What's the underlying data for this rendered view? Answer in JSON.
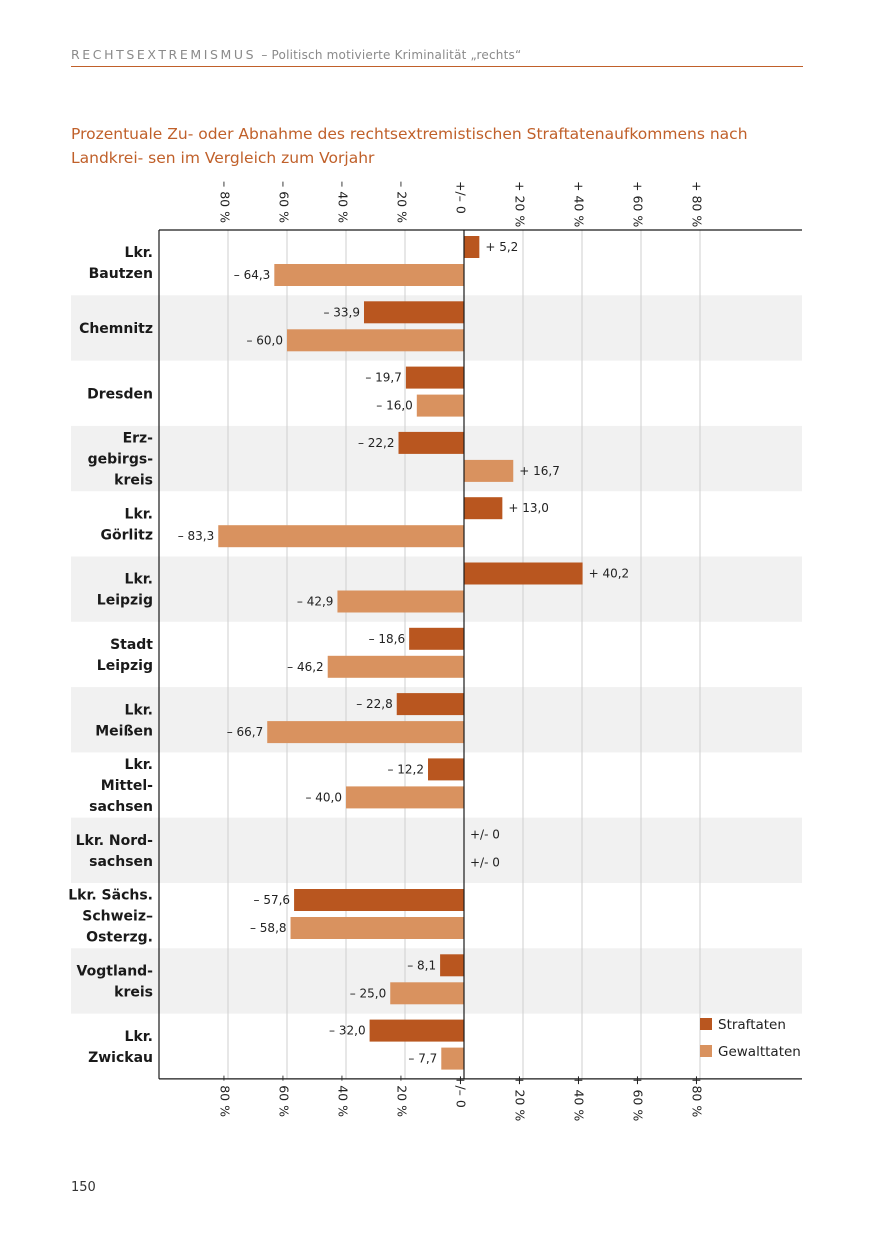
{
  "header": {
    "section": "RECHTSEXTREMISMUS",
    "subtitle": "– Politisch motivierte Kriminalität „rechts“"
  },
  "page_number": "150",
  "chart_data": {
    "type": "bar",
    "orientation": "horizontal",
    "title": "Prozentuale Zu- oder Abnahme des rechtsextremistischen Straftatenaufkommens nach Landkreisen im Vergleich zum Vorjahr",
    "title_display": "Prozentuale Zu- oder Abnahme des rechtsextremistischen Straftatenaufkommens nach Landkrei- sen im Vergleich zum Vorjahr",
    "xlim": [
      -80,
      80
    ],
    "ticks": [
      {
        "value": -80,
        "top_label": "– 80 %",
        "bottom_label": "– 80 %"
      },
      {
        "value": -60,
        "top_label": "– 60 %",
        "bottom_label": "– 60 %"
      },
      {
        "value": -40,
        "top_label": "– 40 %",
        "bottom_label": "– 40 %"
      },
      {
        "value": -20,
        "top_label": "– 20 %",
        "bottom_label": "– 20 %"
      },
      {
        "value": 0,
        "top_label": "+/– 0",
        "bottom_label": "+/– 0"
      },
      {
        "value": 20,
        "top_label": "+ 20 %",
        "bottom_label": "+ 20 %"
      },
      {
        "value": 40,
        "top_label": "+ 40 %",
        "bottom_label": "+ 40 %"
      },
      {
        "value": 60,
        "top_label": "+ 60 %",
        "bottom_label": "+ 60 %"
      },
      {
        "value": 80,
        "top_label": "+ 80 %",
        "bottom_label": "+80 %"
      }
    ],
    "grid": true,
    "legend_position": "bottom-right",
    "series": [
      {
        "name": "Straftaten",
        "color": "#b9561f"
      },
      {
        "name": "Gewalttaten",
        "color": "#d9925f"
      }
    ],
    "rows": [
      {
        "label": [
          "Lkr.",
          "Bautzen"
        ],
        "values": [
          5.2,
          -64.3
        ],
        "labels": [
          "+ 5,2",
          "– 64,3"
        ]
      },
      {
        "label": [
          "Chemnitz"
        ],
        "values": [
          -33.9,
          -60.0
        ],
        "labels": [
          "– 33,9",
          "– 60,0"
        ]
      },
      {
        "label": [
          "Dresden"
        ],
        "values": [
          -19.7,
          -16.0
        ],
        "labels": [
          "– 19,7",
          "– 16,0"
        ]
      },
      {
        "label": [
          "Erz-",
          "gebirgs-",
          "kreis"
        ],
        "values": [
          -22.2,
          16.7
        ],
        "labels": [
          "– 22,2",
          "+ 16,7"
        ]
      },
      {
        "label": [
          "Lkr.",
          "Görlitz"
        ],
        "values": [
          13.0,
          -83.3
        ],
        "labels": [
          "+ 13,0",
          "– 83,3"
        ]
      },
      {
        "label": [
          "Lkr.",
          "Leipzig"
        ],
        "values": [
          40.2,
          -42.9
        ],
        "labels": [
          "+ 40,2",
          "– 42,9"
        ]
      },
      {
        "label": [
          "Stadt",
          "Leipzig"
        ],
        "values": [
          -18.6,
          -46.2
        ],
        "labels": [
          "– 18,6",
          "– 46,2"
        ]
      },
      {
        "label": [
          "Lkr.",
          "Meißen"
        ],
        "values": [
          -22.8,
          -66.7
        ],
        "labels": [
          "– 22,8",
          "– 66,7"
        ]
      },
      {
        "label": [
          "Lkr.",
          "Mittel-",
          "sachsen"
        ],
        "values": [
          -12.2,
          -40.0
        ],
        "labels": [
          "– 12,2",
          "– 40,0"
        ]
      },
      {
        "label": [
          "Lkr. Nord-",
          "sachsen"
        ],
        "values": [
          0,
          0
        ],
        "labels": [
          "+/- 0",
          "+/- 0"
        ]
      },
      {
        "label": [
          "Lkr. Sächs.",
          "Schweiz–",
          "Osterzg."
        ],
        "values": [
          -57.6,
          -58.8
        ],
        "labels": [
          "– 57,6",
          "– 58,8"
        ]
      },
      {
        "label": [
          "Vogtland-",
          "kreis"
        ],
        "values": [
          -8.1,
          -25.0
        ],
        "labels": [
          "– 8,1",
          "– 25,0"
        ]
      },
      {
        "label": [
          "Lkr.",
          "Zwickau"
        ],
        "values": [
          -32.0,
          -7.7
        ],
        "labels": [
          "– 32,0",
          "– 7,7"
        ]
      }
    ],
    "colors": {
      "band": "#f1f1f1",
      "grid": "#cfcfcf",
      "axis": "#1a1a1a",
      "accent": "#c0602a"
    }
  }
}
